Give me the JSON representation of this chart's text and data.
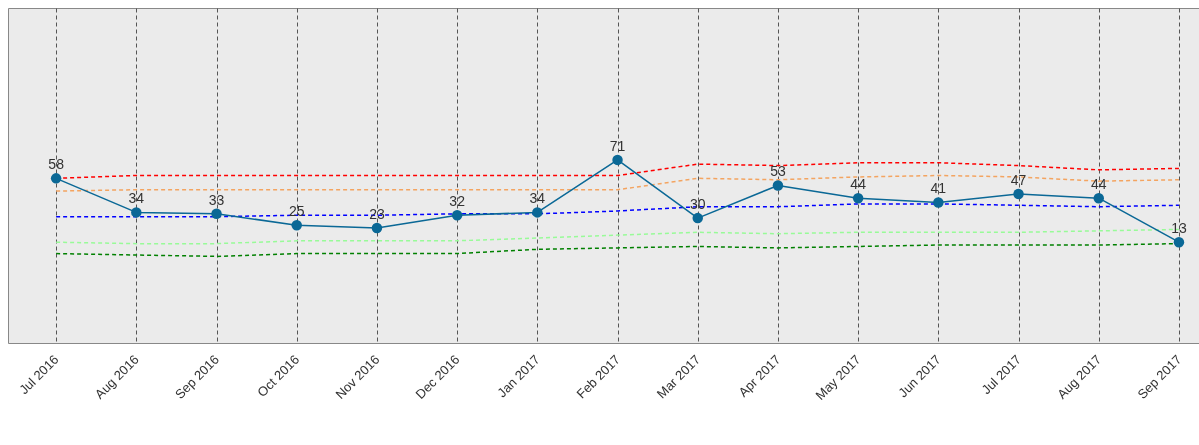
{
  "chart_data": {
    "type": "line",
    "categories": [
      "Jul 2016",
      "Aug 2016",
      "Sep 2016",
      "Oct 2016",
      "Nov 2016",
      "Dec 2016",
      "Jan 2017",
      "Feb 2017",
      "Mar 2017",
      "Apr 2017",
      "May 2017",
      "Jun 2017",
      "Jul 2017",
      "Aug 2017",
      "Sep 2017"
    ],
    "ylim": [
      -58,
      178
    ],
    "tick_labels": "x",
    "grid": "x",
    "series": [
      {
        "color": "#ff0000",
        "line_style": "dashed",
        "marker": "none",
        "values": [
          58,
          60,
          60,
          60,
          60,
          60,
          60,
          60,
          68,
          67,
          69,
          69,
          67,
          64,
          65
        ]
      },
      {
        "color": "#f4a460",
        "line_style": "dashed",
        "marker": "none",
        "values": [
          49,
          50,
          50,
          50,
          50,
          50,
          50,
          50,
          58,
          57,
          59,
          60,
          59,
          56,
          57
        ]
      },
      {
        "color": "#0000ff",
        "line_style": "dashed",
        "marker": "none",
        "values": [
          31,
          31,
          31,
          32,
          32,
          33,
          33,
          35,
          38,
          38,
          40,
          40,
          39,
          38,
          39
        ]
      },
      {
        "color": "#98fb98",
        "line_style": "dashed",
        "marker": "none",
        "values": [
          13,
          12,
          12,
          14,
          14,
          14,
          16,
          18,
          20,
          19,
          20,
          20,
          20,
          21,
          22
        ]
      },
      {
        "color": "#008000",
        "line_style": "dashed",
        "marker": "none",
        "values": [
          5,
          4,
          3,
          5,
          5,
          5,
          8,
          9,
          10,
          9,
          10,
          11,
          11,
          11,
          12
        ]
      },
      {
        "color": "#0a6896",
        "line_style": "solid",
        "marker": "circle",
        "values": [
          58,
          34,
          33,
          25,
          23,
          32,
          34,
          71,
          30,
          53,
          44,
          41,
          47,
          44,
          13
        ],
        "value_labels": [
          "58",
          "34",
          "33",
          "25",
          "23",
          "32",
          "34",
          "71",
          "30",
          "53",
          "44",
          "41",
          "47",
          "44",
          "13"
        ]
      }
    ]
  }
}
